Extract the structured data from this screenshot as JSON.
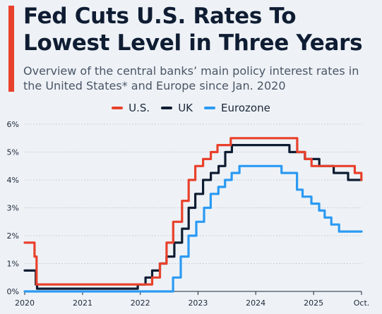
{
  "header": {
    "title": "Fed Cuts U.S. Rates To Lowest Level in Three Years",
    "subtitle": "Overview of the central banks’ main policy interest rates in the United States* and Europe since Jan. 2020"
  },
  "colors": {
    "accent": "#e8412c",
    "us": "#e8412c",
    "uk": "#0f1d33",
    "eurozone": "#2b9af3"
  },
  "chart_data": {
    "type": "line",
    "title": "Fed Cuts U.S. Rates To Lowest Level in Three Years",
    "subtitle": "Overview of the central banks’ main policy interest rates in the United States* and Europe since Jan. 2020",
    "xlabel": "",
    "ylabel": "",
    "xlim": [
      "2020-01-01",
      "2025-10-31"
    ],
    "ylim": [
      0,
      6
    ],
    "y_ticks": [
      "0%",
      "1%",
      "2%",
      "3%",
      "4%",
      "5%",
      "6%"
    ],
    "x_ticks": [
      {
        "label": "2020",
        "date": "2020-01-01"
      },
      {
        "label": "2021",
        "date": "2021-01-01"
      },
      {
        "label": "2022",
        "date": "2022-01-01"
      },
      {
        "label": "2023",
        "date": "2023-01-01"
      },
      {
        "label": "2024",
        "date": "2024-01-01"
      },
      {
        "label": "2025",
        "date": "2025-01-01"
      },
      {
        "label": "Oct.",
        "date": "2025-10-31"
      }
    ],
    "grid": true,
    "legend": "top-center",
    "series": [
      {
        "name": "U.S.",
        "color": "#e8412c",
        "points": [
          [
            "2020-01-01",
            1.75
          ],
          [
            "2020-03-03",
            1.25
          ],
          [
            "2020-03-16",
            0.25
          ],
          [
            "2022-03-17",
            0.5
          ],
          [
            "2022-05-05",
            1.0
          ],
          [
            "2022-06-16",
            1.75
          ],
          [
            "2022-07-28",
            2.5
          ],
          [
            "2022-09-22",
            3.25
          ],
          [
            "2022-11-03",
            4.0
          ],
          [
            "2022-12-15",
            4.5
          ],
          [
            "2023-02-02",
            4.75
          ],
          [
            "2023-03-23",
            5.0
          ],
          [
            "2023-05-04",
            5.25
          ],
          [
            "2023-07-27",
            5.5
          ],
          [
            "2024-09-19",
            5.0
          ],
          [
            "2024-11-08",
            4.75
          ],
          [
            "2024-12-19",
            4.5
          ],
          [
            "2025-09-18",
            4.25
          ],
          [
            "2025-10-30",
            4.0
          ]
        ]
      },
      {
        "name": "UK",
        "color": "#0f1d33",
        "points": [
          [
            "2020-01-01",
            0.75
          ],
          [
            "2020-03-11",
            0.25
          ],
          [
            "2020-03-19",
            0.1
          ],
          [
            "2021-12-16",
            0.25
          ],
          [
            "2022-02-03",
            0.5
          ],
          [
            "2022-03-17",
            0.75
          ],
          [
            "2022-05-05",
            1.0
          ],
          [
            "2022-06-16",
            1.25
          ],
          [
            "2022-08-04",
            1.75
          ],
          [
            "2022-09-22",
            2.25
          ],
          [
            "2022-11-03",
            3.0
          ],
          [
            "2022-12-15",
            3.5
          ],
          [
            "2023-02-02",
            4.0
          ],
          [
            "2023-03-23",
            4.25
          ],
          [
            "2023-05-11",
            4.5
          ],
          [
            "2023-06-22",
            5.0
          ],
          [
            "2023-08-03",
            5.25
          ],
          [
            "2024-08-01",
            5.0
          ],
          [
            "2024-11-07",
            4.75
          ],
          [
            "2025-02-06",
            4.5
          ],
          [
            "2025-05-08",
            4.25
          ],
          [
            "2025-08-07",
            4.0
          ],
          [
            "2025-10-31",
            4.0
          ]
        ]
      },
      {
        "name": "Eurozone",
        "color": "#2b9af3",
        "points": [
          [
            "2020-01-01",
            0.0
          ],
          [
            "2022-07-27",
            0.5
          ],
          [
            "2022-09-14",
            1.25
          ],
          [
            "2022-11-02",
            2.0
          ],
          [
            "2022-12-21",
            2.5
          ],
          [
            "2023-02-08",
            3.0
          ],
          [
            "2023-03-22",
            3.5
          ],
          [
            "2023-05-10",
            3.75
          ],
          [
            "2023-06-21",
            4.0
          ],
          [
            "2023-08-02",
            4.25
          ],
          [
            "2023-09-20",
            4.5
          ],
          [
            "2024-06-12",
            4.25
          ],
          [
            "2024-09-18",
            3.65
          ],
          [
            "2024-10-23",
            3.4
          ],
          [
            "2024-12-18",
            3.15
          ],
          [
            "2025-02-05",
            2.9
          ],
          [
            "2025-03-12",
            2.65
          ],
          [
            "2025-04-23",
            2.4
          ],
          [
            "2025-06-11",
            2.15
          ],
          [
            "2025-10-31",
            2.15
          ]
        ]
      }
    ]
  }
}
